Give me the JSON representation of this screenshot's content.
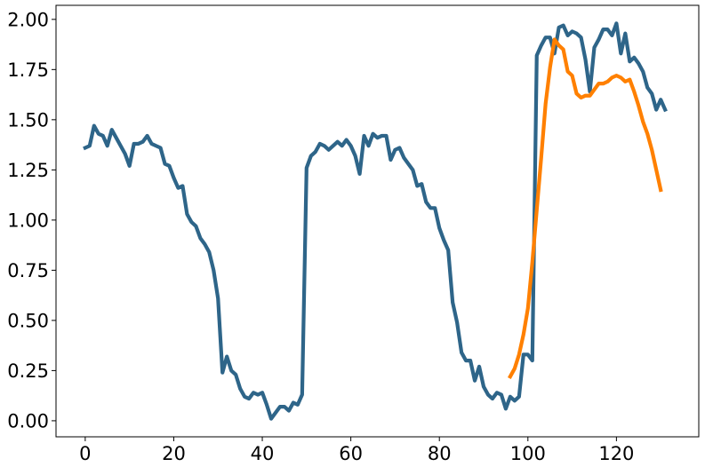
{
  "chart_data": {
    "type": "line",
    "title": "",
    "xlabel": "",
    "ylabel": "",
    "xlim": [
      -6.6,
      138.6
    ],
    "ylim": [
      -0.08,
      2.07
    ],
    "x_ticks": [
      0,
      20,
      40,
      60,
      80,
      100,
      120
    ],
    "x_tick_labels": [
      "0",
      "20",
      "40",
      "60",
      "80",
      "100",
      "120"
    ],
    "y_ticks": [
      0.0,
      0.25,
      0.5,
      0.75,
      1.0,
      1.25,
      1.5,
      1.75,
      2.0
    ],
    "y_tick_labels": [
      "0.00",
      "0.25",
      "0.50",
      "0.75",
      "1.00",
      "1.25",
      "1.50",
      "1.75",
      "2.00"
    ],
    "grid": false,
    "series": [
      {
        "color": "#2e6589",
        "x_start": 0,
        "values": [
          1.36,
          1.37,
          1.47,
          1.43,
          1.42,
          1.37,
          1.45,
          1.41,
          1.37,
          1.33,
          1.27,
          1.38,
          1.38,
          1.39,
          1.42,
          1.38,
          1.37,
          1.36,
          1.28,
          1.27,
          1.21,
          1.16,
          1.17,
          1.03,
          0.99,
          0.97,
          0.91,
          0.88,
          0.84,
          0.75,
          0.61,
          0.24,
          0.32,
          0.25,
          0.23,
          0.16,
          0.12,
          0.11,
          0.14,
          0.13,
          0.14,
          0.08,
          0.01,
          0.04,
          0.07,
          0.07,
          0.05,
          0.09,
          0.08,
          0.13,
          1.26,
          1.32,
          1.34,
          1.38,
          1.37,
          1.35,
          1.37,
          1.39,
          1.37,
          1.4,
          1.37,
          1.32,
          1.23,
          1.42,
          1.37,
          1.43,
          1.41,
          1.42,
          1.42,
          1.3,
          1.35,
          1.36,
          1.31,
          1.28,
          1.25,
          1.17,
          1.18,
          1.09,
          1.06,
          1.06,
          0.96,
          0.9,
          0.85,
          0.59,
          0.49,
          0.34,
          0.3,
          0.3,
          0.2,
          0.27,
          0.17,
          0.13,
          0.11,
          0.14,
          0.13,
          0.06,
          0.12,
          0.1,
          0.12,
          0.33,
          0.33,
          0.3,
          1.82,
          1.87,
          1.91,
          1.91,
          1.83,
          1.96,
          1.97,
          1.92,
          1.94,
          1.93,
          1.91,
          1.8,
          1.64,
          1.86,
          1.9,
          1.95,
          1.95,
          1.92,
          1.98,
          1.83,
          1.93,
          1.79,
          1.81,
          1.78,
          1.74,
          1.66,
          1.63,
          1.55,
          1.6,
          1.55
        ]
      },
      {
        "color": "#ff8000",
        "x_start": 96,
        "values": [
          0.22,
          0.26,
          0.33,
          0.43,
          0.56,
          0.79,
          1.05,
          1.31,
          1.58,
          1.76,
          1.9,
          1.87,
          1.85,
          1.74,
          1.72,
          1.63,
          1.61,
          1.62,
          1.62,
          1.65,
          1.68,
          1.68,
          1.69,
          1.71,
          1.72,
          1.71,
          1.69,
          1.7,
          1.64,
          1.57,
          1.49,
          1.43,
          1.35,
          1.25,
          1.15
        ]
      }
    ]
  }
}
